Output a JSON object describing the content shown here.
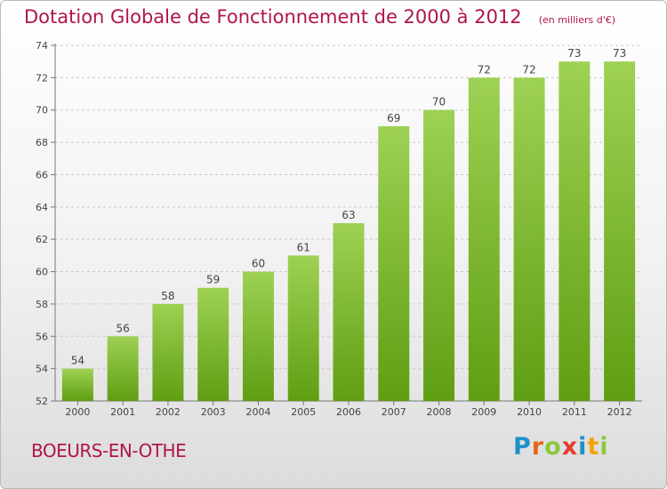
{
  "title": {
    "main": "Dotation Globale de Fonctionnement de 2000 à 2012",
    "unit": "(en milliers d'€)"
  },
  "commune": "BOEURS-EN-OTHE",
  "logo": {
    "letters": [
      "P",
      "r",
      "o",
      "x",
      "i",
      "t",
      "i"
    ],
    "colors": [
      "#1e90c8",
      "#e8661a",
      "#8dc63f",
      "#e53b2e",
      "#1e90c8",
      "#f2a400",
      "#8dc63f"
    ]
  },
  "chart_data": {
    "type": "bar",
    "categories": [
      "2000",
      "2001",
      "2002",
      "2003",
      "2004",
      "2005",
      "2006",
      "2007",
      "2008",
      "2009",
      "2010",
      "2011",
      "2012"
    ],
    "values": [
      54,
      56,
      58,
      59,
      60,
      61,
      63,
      69,
      70,
      72,
      72,
      73,
      73
    ],
    "data_labels": [
      "54",
      "56",
      "58",
      "59",
      "60",
      "61",
      "63",
      "69",
      "70",
      "72",
      "72",
      "73",
      "73"
    ],
    "title": "Dotation Globale de Fonctionnement de 2000 à 2012",
    "xlabel": "",
    "ylabel": "",
    "ylim": [
      52,
      74
    ],
    "yticks": [
      52,
      54,
      56,
      58,
      60,
      62,
      64,
      66,
      68,
      70,
      72,
      74
    ],
    "grid": true,
    "bar_color": "#8dc63f"
  }
}
